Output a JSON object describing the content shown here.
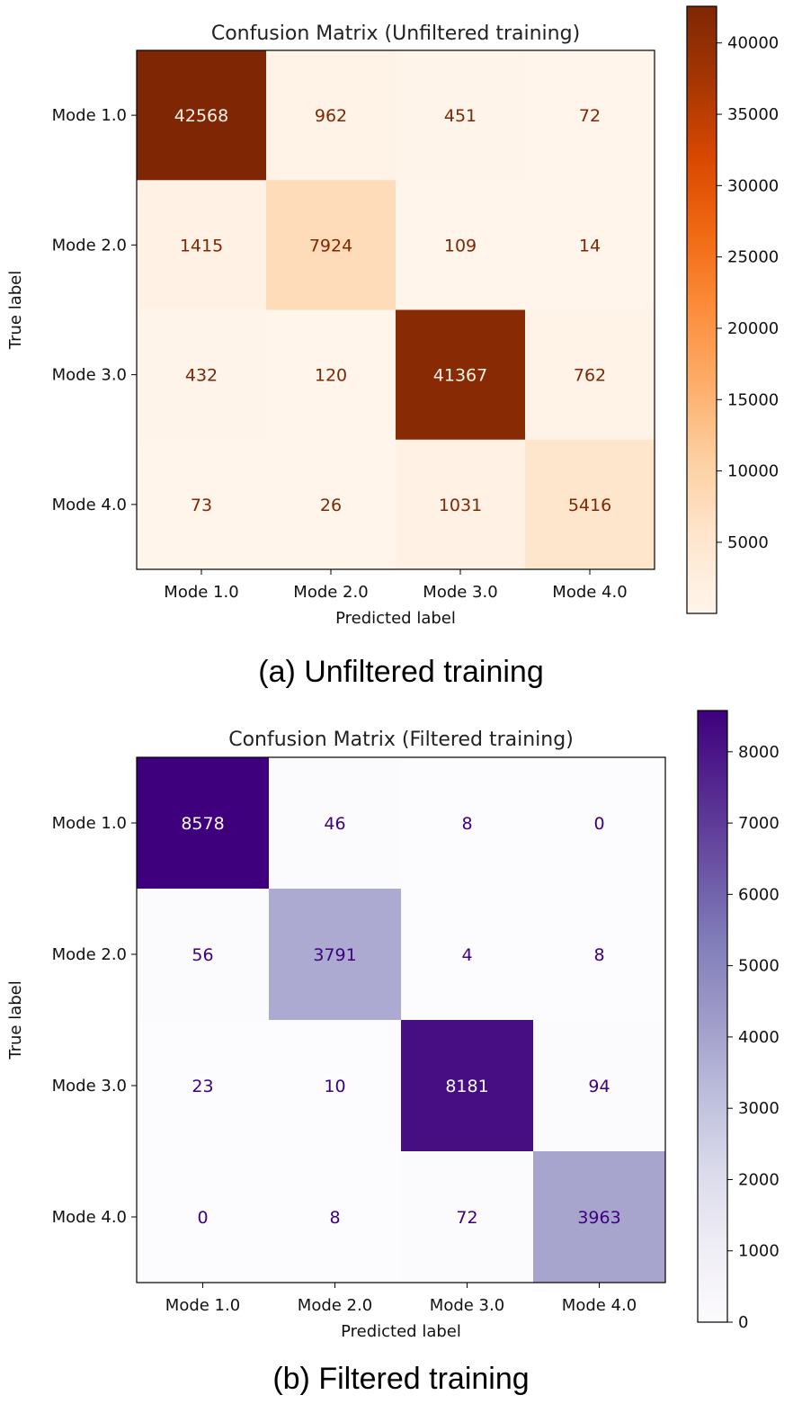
{
  "chart_data": [
    {
      "type": "heatmap",
      "title": "Confusion Matrix (Unfiltered training)",
      "xlabel": "Predicted label",
      "ylabel": "True label",
      "categories": [
        "Mode 1.0",
        "Mode 2.0",
        "Mode 3.0",
        "Mode 4.0"
      ],
      "values": [
        [
          42568,
          962,
          451,
          72
        ],
        [
          1415,
          7924,
          109,
          14
        ],
        [
          432,
          120,
          41367,
          762
        ],
        [
          73,
          26,
          1031,
          5416
        ]
      ],
      "colormap": "Oranges",
      "text_dark": "#7f2704",
      "text_light": "#fff5eb",
      "colorbar_range": [
        14,
        42568
      ],
      "colorbar_ticks": [
        5000,
        10000,
        15000,
        20000,
        25000,
        30000,
        35000,
        40000
      ],
      "caption": "(a)  Unfiltered  training"
    },
    {
      "type": "heatmap",
      "title": "Confusion Matrix (Filtered training)",
      "xlabel": "Predicted label",
      "ylabel": "True label",
      "categories": [
        "Mode 1.0",
        "Mode 2.0",
        "Mode 3.0",
        "Mode 4.0"
      ],
      "values": [
        [
          8578,
          46,
          8,
          0
        ],
        [
          56,
          3791,
          4,
          8
        ],
        [
          23,
          10,
          8181,
          94
        ],
        [
          0,
          8,
          72,
          3963
        ]
      ],
      "colormap": "Purples",
      "text_dark": "#3f007d",
      "text_light": "#fcfbfd",
      "colorbar_range": [
        0,
        8578
      ],
      "colorbar_ticks": [
        0,
        1000,
        2000,
        3000,
        4000,
        5000,
        6000,
        7000,
        8000
      ],
      "caption": "(b)  Filtered  training"
    }
  ]
}
